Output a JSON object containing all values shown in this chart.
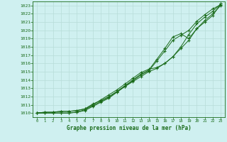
{
  "xlabel": "Graphe pression niveau de la mer (hPa)",
  "background_color": "#cff0f0",
  "grid_color": "#b8ddd8",
  "line_color": "#1a6b1a",
  "ylim": [
    1009.5,
    1023.5
  ],
  "xlim": [
    -0.5,
    23.5
  ],
  "yticks": [
    1010,
    1011,
    1012,
    1013,
    1014,
    1015,
    1016,
    1017,
    1018,
    1019,
    1020,
    1021,
    1022,
    1023
  ],
  "xticks": [
    0,
    1,
    2,
    3,
    4,
    5,
    6,
    7,
    8,
    9,
    10,
    11,
    12,
    13,
    14,
    15,
    16,
    17,
    18,
    19,
    20,
    21,
    22,
    23
  ],
  "curves": [
    [
      1010.0,
      1010.1,
      1010.1,
      1010.2,
      1010.2,
      1010.3,
      1010.5,
      1011.1,
      1011.5,
      1012.0,
      1012.6,
      1013.2,
      1013.8,
      1014.4,
      1015.0,
      1015.4,
      1016.0,
      1016.8,
      1017.8,
      1018.8,
      1020.2,
      1021.0,
      1021.8,
      1023.2
    ],
    [
      1010.0,
      1010.1,
      1010.1,
      1010.2,
      1010.2,
      1010.3,
      1010.5,
      1011.0,
      1011.6,
      1012.2,
      1012.8,
      1013.5,
      1014.2,
      1014.9,
      1015.3,
      1015.5,
      1016.0,
      1016.8,
      1018.0,
      1019.5,
      1020.8,
      1021.6,
      1022.3,
      1023.2
    ],
    [
      1010.0,
      1010.0,
      1010.0,
      1010.0,
      1010.0,
      1010.1,
      1010.4,
      1010.9,
      1011.4,
      1011.9,
      1012.6,
      1013.3,
      1014.0,
      1014.7,
      1015.2,
      1016.5,
      1017.8,
      1019.2,
      1019.6,
      1019.0,
      1020.2,
      1021.2,
      1022.0,
      1023.0
    ],
    [
      1010.0,
      1010.0,
      1010.0,
      1010.0,
      1010.0,
      1010.1,
      1010.3,
      1010.8,
      1011.3,
      1011.8,
      1012.5,
      1013.2,
      1013.9,
      1014.6,
      1015.1,
      1016.3,
      1017.5,
      1018.8,
      1019.4,
      1020.0,
      1021.1,
      1021.9,
      1022.6,
      1023.1
    ]
  ]
}
